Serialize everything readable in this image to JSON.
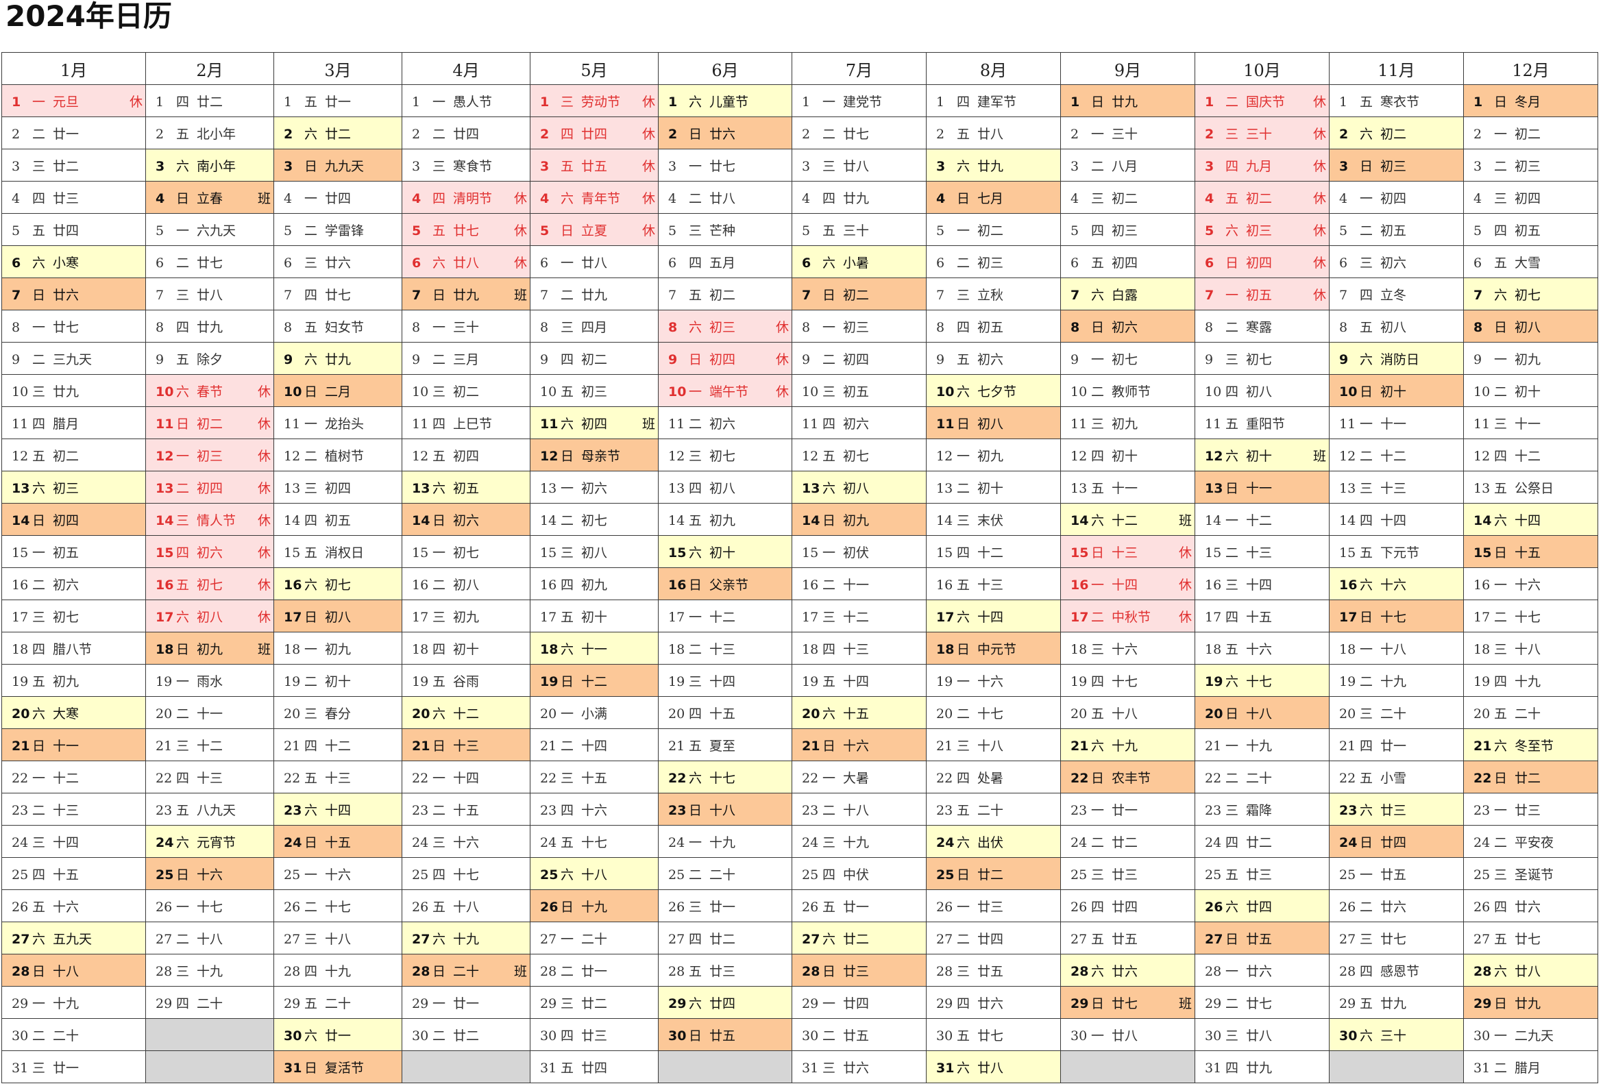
{
  "title": "2024年日历",
  "months": [
    {
      "name": "1月",
      "first_weekday": 1,
      "days": 31,
      "lunar": [
        "元旦",
        "廿一",
        "廿二",
        "廿三",
        "廿四",
        "小寒",
        "廿六",
        "廿七",
        "三九天",
        "廿九",
        "腊月",
        "初二",
        "初三",
        "初四",
        "初五",
        "初六",
        "初七",
        "腊八节",
        "初九",
        "大寒",
        "十一",
        "十二",
        "十三",
        "十四",
        "十五",
        "十六",
        "五九天",
        "十八",
        "十九",
        "二十",
        "廿一"
      ]
    },
    {
      "name": "2月",
      "first_weekday": 4,
      "days": 29,
      "lunar": [
        "廿二",
        "北小年",
        "南小年",
        "立春",
        "六九天",
        "廿七",
        "廿八",
        "廿九",
        "除夕",
        "春节",
        "初二",
        "初三",
        "初四",
        "情人节",
        "初六",
        "初七",
        "初八",
        "初九",
        "雨水",
        "十一",
        "十二",
        "十三",
        "八九天",
        "元宵节",
        "十六",
        "十七",
        "十八",
        "十九",
        "二十"
      ]
    },
    {
      "name": "3月",
      "first_weekday": 5,
      "days": 31,
      "lunar": [
        "廿一",
        "廿二",
        "九九天",
        "廿四",
        "学雷锋",
        "廿六",
        "廿七",
        "妇女节",
        "廿九",
        "二月",
        "龙抬头",
        "植树节",
        "初四",
        "初五",
        "消权日",
        "初七",
        "初八",
        "初九",
        "初十",
        "春分",
        "十二",
        "十三",
        "十四",
        "十五",
        "十六",
        "十七",
        "十八",
        "十九",
        "二十",
        "廿一",
        "复活节"
      ]
    },
    {
      "name": "4月",
      "first_weekday": 1,
      "days": 30,
      "lunar": [
        "愚人节",
        "廿四",
        "寒食节",
        "清明节",
        "廿七",
        "廿八",
        "廿九",
        "三十",
        "三月",
        "初二",
        "上巳节",
        "初四",
        "初五",
        "初六",
        "初七",
        "初八",
        "初九",
        "初十",
        "谷雨",
        "十二",
        "十三",
        "十四",
        "十五",
        "十六",
        "十七",
        "十八",
        "十九",
        "二十",
        "廿一",
        "廿二"
      ]
    },
    {
      "name": "5月",
      "first_weekday": 3,
      "days": 31,
      "lunar": [
        "劳动节",
        "廿四",
        "廿五",
        "青年节",
        "立夏",
        "廿八",
        "廿九",
        "四月",
        "初二",
        "初三",
        "初四",
        "母亲节",
        "初六",
        "初七",
        "初八",
        "初九",
        "初十",
        "十一",
        "十二",
        "小满",
        "十四",
        "十五",
        "十六",
        "十七",
        "十八",
        "十九",
        "二十",
        "廿一",
        "廿二",
        "廿三",
        "廿四"
      ]
    },
    {
      "name": "6月",
      "first_weekday": 6,
      "days": 30,
      "lunar": [
        "儿童节",
        "廿六",
        "廿七",
        "廿八",
        "芒种",
        "五月",
        "初二",
        "初三",
        "初四",
        "端午节",
        "初六",
        "初七",
        "初八",
        "初九",
        "初十",
        "父亲节",
        "十二",
        "十三",
        "十四",
        "十五",
        "夏至",
        "十七",
        "十八",
        "十九",
        "二十",
        "廿一",
        "廿二",
        "廿三",
        "廿四",
        "廿五"
      ]
    },
    {
      "name": "7月",
      "first_weekday": 1,
      "days": 31,
      "lunar": [
        "建党节",
        "廿七",
        "廿八",
        "廿九",
        "三十",
        "小暑",
        "初二",
        "初三",
        "初四",
        "初五",
        "初六",
        "初七",
        "初八",
        "初九",
        "初伏",
        "十一",
        "十二",
        "十三",
        "十四",
        "十五",
        "十六",
        "大暑",
        "十八",
        "十九",
        "中伏",
        "廿一",
        "廿二",
        "廿三",
        "廿四",
        "廿五",
        "廿六"
      ]
    },
    {
      "name": "8月",
      "first_weekday": 4,
      "days": 31,
      "lunar": [
        "建军节",
        "廿八",
        "廿九",
        "七月",
        "初二",
        "初三",
        "立秋",
        "初五",
        "初六",
        "七夕节",
        "初八",
        "初九",
        "初十",
        "末伏",
        "十二",
        "十三",
        "十四",
        "中元节",
        "十六",
        "十七",
        "十八",
        "处暑",
        "二十",
        "出伏",
        "廿二",
        "廿三",
        "廿四",
        "廿五",
        "廿六",
        "廿七",
        "廿八"
      ]
    },
    {
      "name": "9月",
      "first_weekday": 7,
      "days": 30,
      "lunar": [
        "廿九",
        "三十",
        "八月",
        "初二",
        "初三",
        "初四",
        "白露",
        "初六",
        "初七",
        "教师节",
        "初九",
        "初十",
        "十一",
        "十二",
        "十三",
        "十四",
        "中秋节",
        "十六",
        "十七",
        "十八",
        "十九",
        "农丰节",
        "廿一",
        "廿二",
        "廿三",
        "廿四",
        "廿五",
        "廿六",
        "廿七",
        "廿八"
      ]
    },
    {
      "name": "10月",
      "first_weekday": 2,
      "days": 31,
      "lunar": [
        "国庆节",
        "三十",
        "九月",
        "初二",
        "初三",
        "初四",
        "初五",
        "寒露",
        "初七",
        "初八",
        "重阳节",
        "初十",
        "十一",
        "十二",
        "十三",
        "十四",
        "十五",
        "十六",
        "十七",
        "十八",
        "十九",
        "二十",
        "霜降",
        "廿二",
        "廿三",
        "廿四",
        "廿五",
        "廿六",
        "廿七",
        "廿八",
        "廿九"
      ]
    },
    {
      "name": "11月",
      "first_weekday": 5,
      "days": 30,
      "lunar": [
        "寒衣节",
        "初二",
        "初三",
        "初四",
        "初五",
        "初六",
        "立冬",
        "初八",
        "消防日",
        "初十",
        "十一",
        "十二",
        "十三",
        "十四",
        "下元节",
        "十六",
        "十七",
        "十八",
        "十九",
        "二十",
        "廿一",
        "小雪",
        "廿三",
        "廿四",
        "廿五",
        "廿六",
        "廿七",
        "感恩节",
        "廿九",
        "三十"
      ]
    },
    {
      "name": "12月",
      "first_weekday": 7,
      "days": 31,
      "lunar": [
        "冬月",
        "初二",
        "初三",
        "初四",
        "初五",
        "大雪",
        "初七",
        "初八",
        "初九",
        "初十",
        "十一",
        "十二",
        "公祭日",
        "十四",
        "十五",
        "十六",
        "十七",
        "十八",
        "十九",
        "二十",
        "冬至节",
        "廿二",
        "廿三",
        "平安夜",
        "圣诞节",
        "廿六",
        "廿七",
        "廿八",
        "廿九",
        "二九天",
        "腊月"
      ]
    }
  ],
  "weekday_chars": [
    "一",
    "二",
    "三",
    "四",
    "五",
    "六",
    "日"
  ],
  "rest_label": "休",
  "work_label": "班",
  "rest_days": {
    "1": [
      1
    ],
    "2": [
      10,
      11,
      12,
      13,
      14,
      15,
      16,
      17
    ],
    "4": [
      4,
      5,
      6
    ],
    "5": [
      1,
      2,
      3,
      4,
      5
    ],
    "6": [
      8,
      9,
      10
    ],
    "9": [
      15,
      16,
      17
    ],
    "10": [
      1,
      2,
      3,
      4,
      5,
      6,
      7
    ]
  },
  "work_days": {
    "2": [
      4,
      18
    ],
    "4": [
      7,
      28
    ],
    "5": [
      11
    ],
    "9": [
      14,
      29
    ],
    "10": [
      12
    ]
  },
  "colors": {
    "saturday": "#ffffcc",
    "sunday": "#fcc898",
    "holiday_bg": "#fde0e0",
    "holiday_text": "#e03030",
    "empty": "#d6d6d6",
    "border": "#3a3a3a"
  }
}
